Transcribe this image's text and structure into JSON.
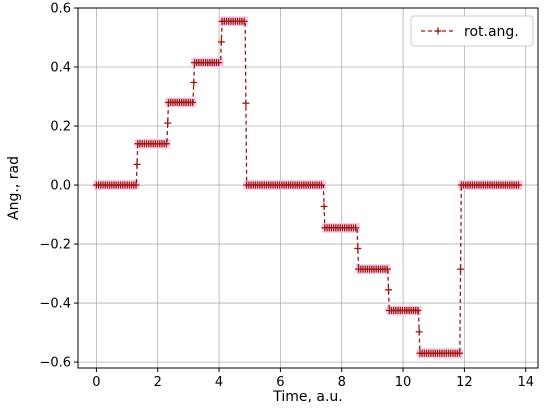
{
  "chart_data": {
    "type": "line",
    "xlabel": "Time, a.u.",
    "ylabel": "Ang., rad",
    "xlim": [
      -0.6,
      14.4
    ],
    "ylim": [
      -0.62,
      0.6
    ],
    "xticks": [
      0,
      2,
      4,
      6,
      8,
      10,
      12,
      14
    ],
    "xtick_labels": [
      "0",
      "2",
      "4",
      "6",
      "8",
      "10",
      "12",
      "14"
    ],
    "yticks": [
      -0.6,
      -0.4,
      -0.2,
      0.0,
      0.2,
      0.4,
      0.6
    ],
    "ytick_labels": [
      "−0.6",
      "−0.4",
      "−0.2",
      "0.0",
      "0.2",
      "0.4",
      "0.6"
    ],
    "grid": true,
    "legend_position": "top-right",
    "series": [
      {
        "name": "rot.ang.",
        "color": "#9b1b0e",
        "marker": "+",
        "linestyle": "dashed",
        "highlight_color": "#f9c7ea",
        "x": [
          0.0,
          1.3,
          1.35,
          2.3,
          2.35,
          3.15,
          3.2,
          4.05,
          4.1,
          4.85,
          4.9,
          7.4,
          7.45,
          8.5,
          8.55,
          9.5,
          9.55,
          10.5,
          10.55,
          11.85,
          11.9,
          13.8
        ],
        "y": [
          0.0,
          0.0,
          0.14,
          0.14,
          0.28,
          0.28,
          0.415,
          0.415,
          0.555,
          0.555,
          0.0,
          0.0,
          -0.145,
          -0.145,
          -0.285,
          -0.285,
          -0.425,
          -0.425,
          -0.57,
          -0.57,
          0.0,
          0.0
        ]
      }
    ]
  }
}
